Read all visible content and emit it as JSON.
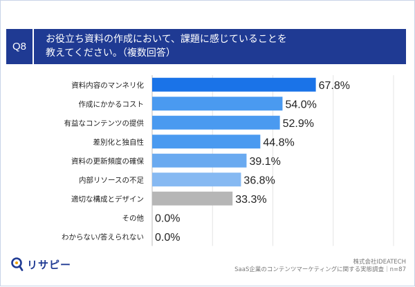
{
  "question": {
    "number": "Q8",
    "text_line1": "お役立ち資料の作成において、課題に感じていることを",
    "text_line2": "教えてください。（複数回答）"
  },
  "chart_data": {
    "type": "bar",
    "orientation": "horizontal",
    "categories": [
      "資料内容のマンネリ化",
      "作成にかかるコスト",
      "有益なコンテンツの提供",
      "差別化と独自性",
      "資料の更新頻度の確保",
      "内部リソースの不足",
      "適切な構成とデザイン",
      "その他",
      "わからない/答えられない"
    ],
    "values": [
      67.8,
      54.0,
      52.9,
      44.8,
      39.1,
      36.8,
      33.3,
      0.0,
      0.0
    ],
    "value_labels": [
      "67.8%",
      "54.0%",
      "52.9%",
      "44.8%",
      "39.1%",
      "36.8%",
      "33.3%",
      "0.0%",
      "0.0%"
    ],
    "colors": [
      "#1a73e8",
      "#4a9af0",
      "#4a9af0",
      "#4a9af0",
      "#6aaaf0",
      "#86b9f2",
      "#b6b6b6",
      "#b6b6b6",
      "#b6b6b6"
    ],
    "xlim": [
      0,
      100
    ],
    "grid": true
  },
  "footer": {
    "company": "株式会社IDEATECH",
    "survey": "SaaS企業のコンテンツマーケティングに関する実態調査｜n=87"
  },
  "logo": {
    "icon": "magnifier-pin-icon",
    "text": "リサピー"
  }
}
